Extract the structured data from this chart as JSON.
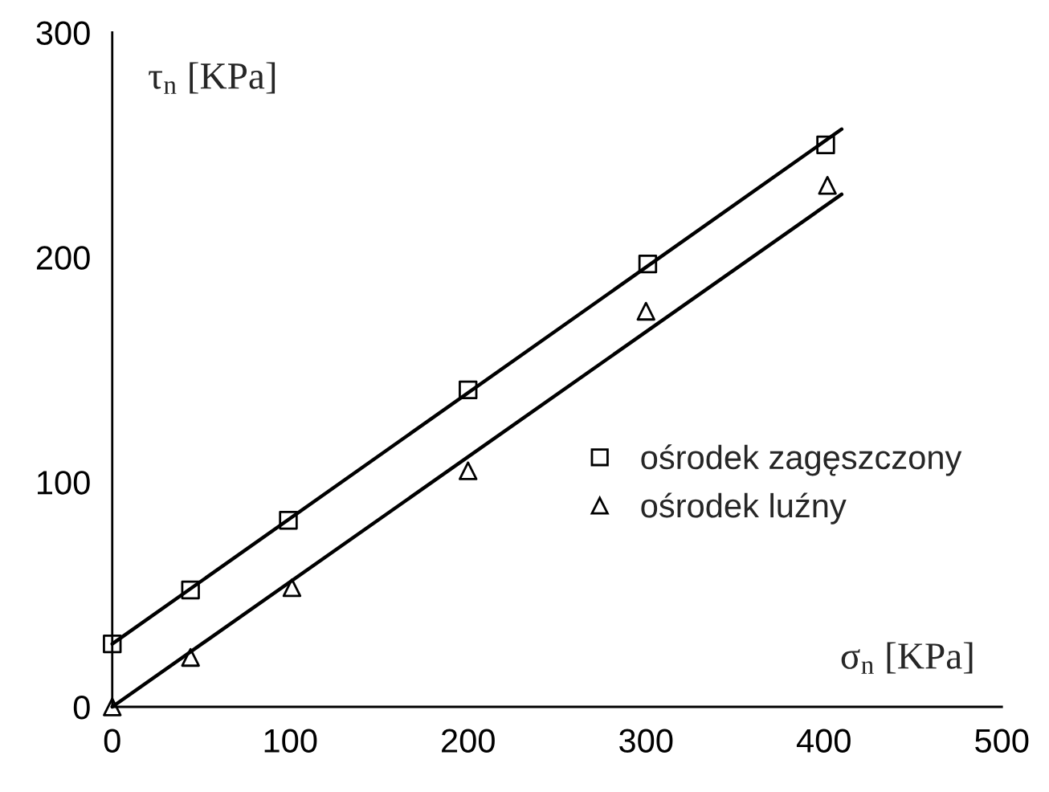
{
  "chart_data": {
    "type": "scatter",
    "xlabel": "σ$_{n}$ [KPa]",
    "ylabel": "τ$_{n}$ [KPa]",
    "xlim": [
      0,
      500
    ],
    "xticks": [
      0,
      100,
      200,
      300,
      400,
      500
    ],
    "ylim": [
      0,
      300
    ],
    "yticks": [
      0,
      100,
      200,
      300
    ],
    "grid": false,
    "legend": "right",
    "series": [
      {
        "name": "ośrodek zagęszczony",
        "marker": "square",
        "color": "#000000",
        "x": [
          0,
          44,
          99,
          200,
          301,
          401
        ],
        "values": [
          28,
          52,
          83,
          141,
          197,
          250
        ]
      },
      {
        "name": "ośrodek luźny",
        "marker": "triangle",
        "color": "#000000",
        "x": [
          0,
          44,
          101,
          200,
          300,
          402
        ],
        "values": [
          0,
          22,
          53,
          105,
          176,
          232
        ]
      },
      {
        "type": "line",
        "marker": "none",
        "line_style": "solid",
        "color": "#000000",
        "x": [
          0,
          410
        ],
        "values": [
          28,
          257
        ]
      },
      {
        "type": "line",
        "marker": "none",
        "line_style": "solid",
        "color": "#000000",
        "x": [
          0,
          410
        ],
        "values": [
          0,
          228
        ]
      }
    ]
  }
}
